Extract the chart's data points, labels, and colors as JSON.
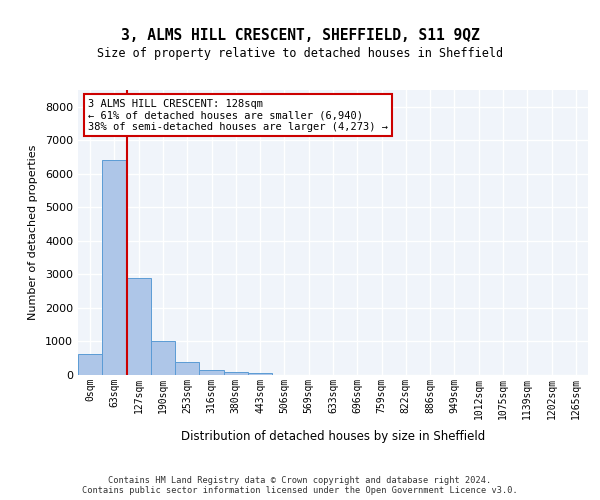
{
  "title": "3, ALMS HILL CRESCENT, SHEFFIELD, S11 9QZ",
  "subtitle": "Size of property relative to detached houses in Sheffield",
  "xlabel": "Distribution of detached houses by size in Sheffield",
  "ylabel": "Number of detached properties",
  "bar_color": "#aec6e8",
  "bar_edge_color": "#5b9bd5",
  "background_color": "#f0f4fa",
  "grid_color": "#ffffff",
  "vline_color": "#cc0000",
  "vline_x_index": 2,
  "annotation_text": "3 ALMS HILL CRESCENT: 128sqm\n← 61% of detached houses are smaller (6,940)\n38% of semi-detached houses are larger (4,273) →",
  "annotation_box_color": "#ffffff",
  "annotation_box_edge": "#cc0000",
  "footer_text": "Contains HM Land Registry data © Crown copyright and database right 2024.\nContains public sector information licensed under the Open Government Licence v3.0.",
  "bins": [
    "0sqm",
    "63sqm",
    "127sqm",
    "190sqm",
    "253sqm",
    "316sqm",
    "380sqm",
    "443sqm",
    "506sqm",
    "569sqm",
    "633sqm",
    "696sqm",
    "759sqm",
    "822sqm",
    "886sqm",
    "949sqm",
    "1012sqm",
    "1075sqm",
    "1139sqm",
    "1202sqm",
    "1265sqm"
  ],
  "values": [
    620,
    6400,
    2900,
    1000,
    380,
    160,
    90,
    70,
    0,
    0,
    0,
    0,
    0,
    0,
    0,
    0,
    0,
    0,
    0,
    0,
    0
  ],
  "ylim": [
    0,
    8500
  ],
  "yticks": [
    0,
    1000,
    2000,
    3000,
    4000,
    5000,
    6000,
    7000,
    8000
  ]
}
